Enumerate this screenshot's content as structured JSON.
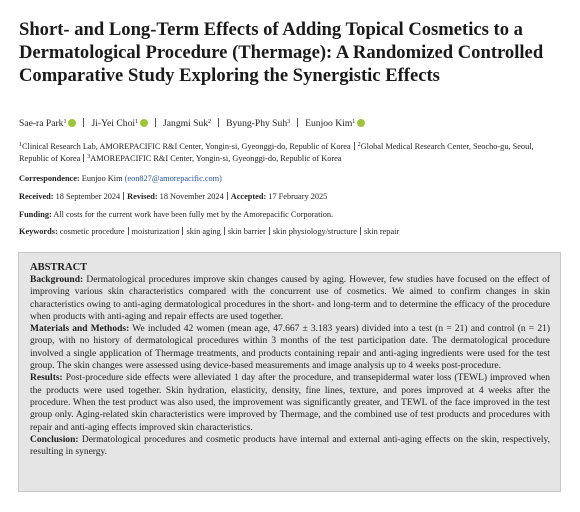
{
  "title": "Short- and Long-Term Effects of Adding Topical Cosmetics to a Dermatological Procedure (Thermage): A Randomized Controlled Comparative Study Exploring the Synergistic Effects",
  "authors": [
    {
      "name": "Sae-ra Park",
      "sup": "1"
    },
    {
      "name": "Ji-Yei Choi",
      "sup": "1"
    },
    {
      "name": "Jangmi Suk",
      "sup": "2"
    },
    {
      "name": "Byung-Phy Suh",
      "sup": "3"
    },
    {
      "name": "Eunjoo Kim",
      "sup": "1"
    }
  ],
  "affiliations": [
    {
      "sup": "1",
      "text": "Clinical Research Lab, AMOREPACIFIC R&I Center, Yongin-si, Gyeonggi-do, Republic of Korea"
    },
    {
      "sup": "2",
      "text": "Global Medical Research Center, Seocho-gu, Seoul, Republic of Korea"
    },
    {
      "sup": "3",
      "text": "AMOREPACIFIC R&I Center, Yongin-si, Gyeonggi-do, Republic of Korea"
    }
  ],
  "correspondence": {
    "label": "Correspondence:",
    "name": "Eunjoo Kim",
    "email": "(eon827@amorepacific.com)"
  },
  "dates": [
    {
      "label": "Received:",
      "value": "18 September 2024"
    },
    {
      "label": "Revised:",
      "value": "18 November 2024"
    },
    {
      "label": "Accepted:",
      "value": "17 February 2025"
    }
  ],
  "funding": {
    "label": "Funding:",
    "text": "All costs for the current work have been fully met by the Amorepacific Corporation."
  },
  "keywords": {
    "label": "Keywords:",
    "items": [
      "cosmetic procedure",
      "moisturization",
      "skin aging",
      "skin barrier",
      "skin physiology/structure",
      "skin repair"
    ]
  },
  "abstract": {
    "heading": "ABSTRACT",
    "sections": [
      {
        "label": "Background:",
        "text": "Dermatological procedures improve skin changes caused by aging. However, few studies have focused on the effect of improving various skin characteristics compared with the concurrent use of cosmetics. We aimed to confirm changes in skin characteristics owing to anti-aging dermatological procedures in the short- and long-term and to determine the efficacy of the procedure when products with anti-aging and repair effects are used together."
      },
      {
        "label": "Materials and Methods:",
        "text": "We included 42 women (mean age, 47.667 ± 3.183 years) divided into a test (n = 21) and control (n = 21) group, with no history of dermatological procedures within 3 months of the test participation date. The dermatological procedure involved a single application of Thermage treatments, and products containing repair and anti-aging ingredients were used for the test group. The skin changes were assessed using device-based measurements and image analysis up to 4 weeks post-procedure."
      },
      {
        "label": "Results:",
        "text": "Post-procedure side effects were alleviated 1 day after the procedure, and transepidermal water loss (TEWL) improved when the products were used together. Skin hydration, elasticity, density, fine lines, texture, and pores improved at 4 weeks after the procedure. When the test product was also used, the improvement was significantly greater, and TEWL of the face improved in the test group only. Aging-related skin characteristics were improved by Thermage, and the combined use of test products and procedures with repair and anti-aging effects improved skin characteristics."
      },
      {
        "label": "Conclusion:",
        "text": "Dermatological procedures and cosmetic products have internal and external anti-aging effects on the skin, respectively, resulting in synergy."
      }
    ]
  }
}
